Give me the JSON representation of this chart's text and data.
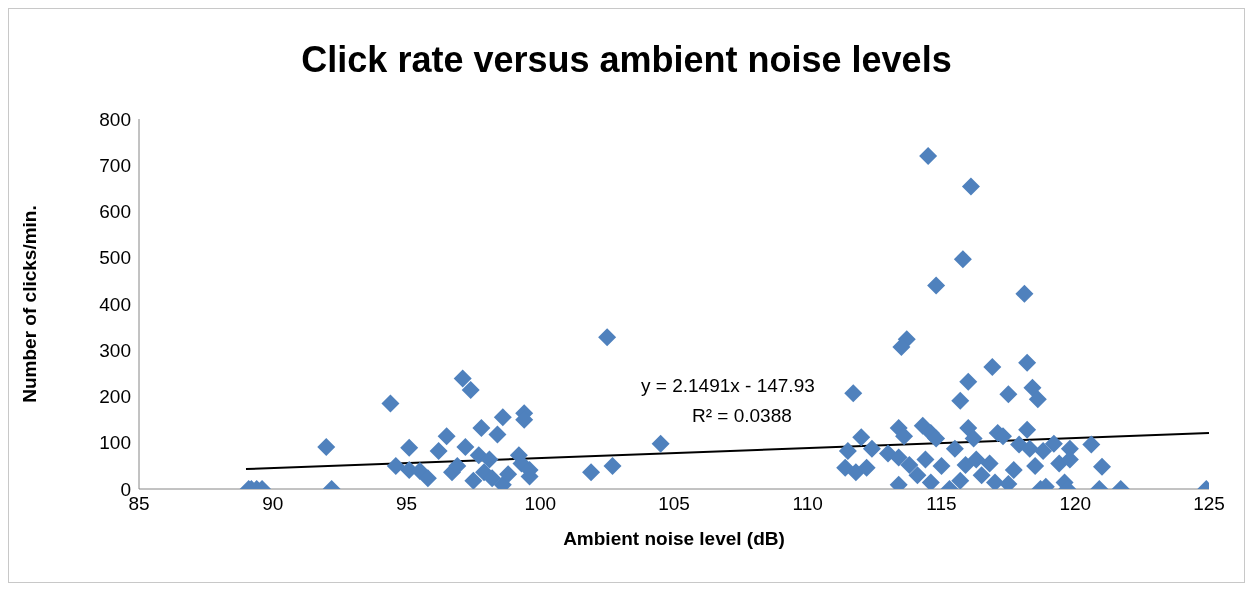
{
  "chart_data": {
    "type": "scatter",
    "title": "Click rate versus ambient noise levels",
    "xlabel": "Ambient noise level (dB)",
    "ylabel": "Number of clicks/min.",
    "xlim": [
      85,
      125
    ],
    "xticks": [
      85,
      90,
      95,
      100,
      105,
      110,
      115,
      120,
      125
    ],
    "ylim": [
      0,
      800
    ],
    "yticks": [
      0,
      100,
      200,
      300,
      400,
      500,
      600,
      700,
      800
    ],
    "annotations": [
      "y = 2.1491x - 147.93",
      "R² = 0.0388"
    ],
    "series": [
      {
        "marker": "diamond",
        "color": "#4f81bd",
        "x": [
          89.1,
          89.2,
          89.4,
          89.6,
          92.0,
          92.2,
          94.4,
          94.6,
          95.1,
          95.1,
          95.5,
          95.8,
          96.2,
          96.5,
          96.7,
          96.9,
          97.1,
          97.4,
          97.2,
          97.5,
          97.7,
          97.8,
          97.9,
          98.1,
          98.2,
          98.4,
          98.6,
          98.6,
          98.8,
          99.2,
          99.4,
          99.4,
          99.3,
          99.6,
          99.6,
          101.9,
          102.7,
          102.5,
          104.5,
          111.7,
          114.5,
          116.1,
          115.8,
          114.8,
          118.1,
          113.7,
          113.5,
          116.9,
          118.2,
          116.0,
          117.5,
          118.4,
          118.6,
          115.7,
          112.0,
          111.5,
          111.4,
          111.8,
          112.2,
          112.4,
          113.0,
          113.4,
          113.6,
          113.4,
          113.4,
          113.8,
          114.3,
          114.6,
          114.8,
          114.4,
          114.1,
          114.6,
          115.0,
          115.3,
          115.5,
          115.7,
          115.9,
          116.0,
          116.2,
          116.3,
          116.5,
          116.8,
          117.0,
          117.1,
          117.3,
          117.5,
          117.7,
          117.9,
          118.2,
          118.3,
          118.5,
          118.7,
          118.8,
          119.2,
          119.4,
          119.6,
          119.8,
          120.6,
          121.0,
          120.9,
          121.7,
          124.9,
          119.8,
          118.9,
          119.7
        ],
        "values": [
          0,
          0,
          0,
          0,
          91,
          0,
          185,
          50,
          89,
          41,
          39,
          23,
          82,
          114,
          36,
          50,
          239,
          214,
          91,
          18,
          73,
          132,
          36,
          64,
          23,
          118,
          155,
          9,
          32,
          73,
          164,
          150,
          55,
          27,
          41,
          36,
          50,
          328,
          98,
          207,
          720,
          654,
          497,
          440,
          422,
          324,
          307,
          264,
          273,
          232,
          205,
          219,
          194,
          191,
          112,
          82,
          46,
          36,
          46,
          87,
          77,
          132,
          114,
          68,
          9,
          52,
          137,
          121,
          109,
          64,
          30,
          14,
          50,
          0,
          87,
          18,
          52,
          132,
          109,
          64,
          30,
          55,
          14,
          121,
          114,
          11,
          41,
          96,
          128,
          87,
          50,
          0,
          82,
          98,
          55,
          14,
          87,
          96,
          48,
          0,
          0,
          0,
          64,
          5,
          0
        ]
      },
      {
        "type": "line",
        "color": "#000000",
        "x": [
          89,
          125
        ],
        "values": [
          43,
          121
        ]
      }
    ]
  }
}
